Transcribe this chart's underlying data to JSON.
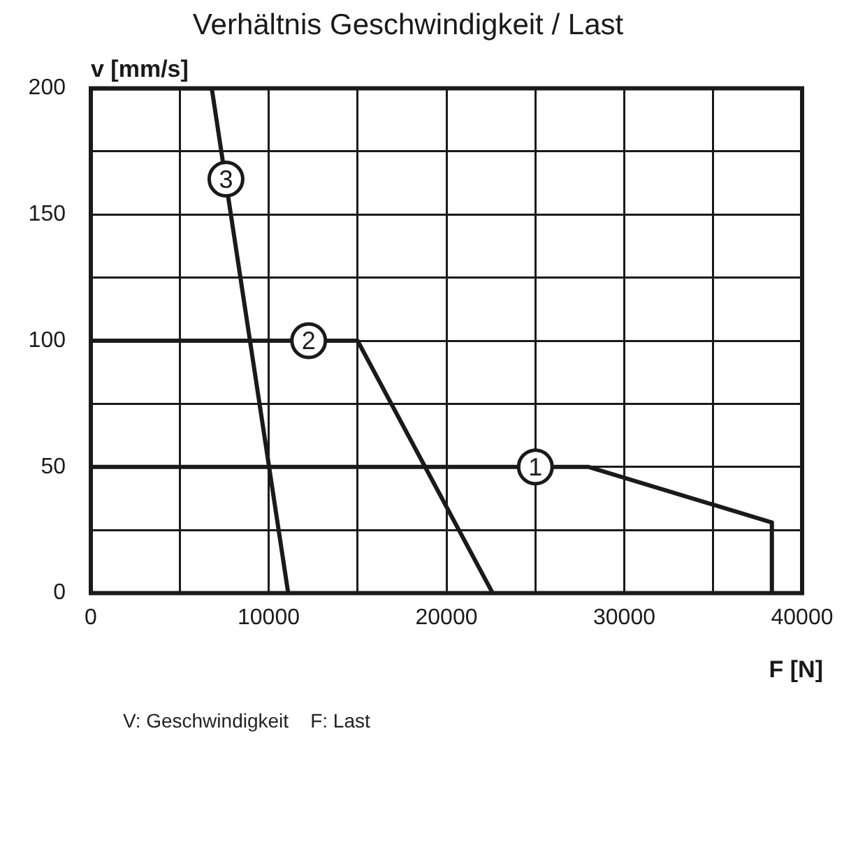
{
  "chart_data": {
    "type": "line",
    "title": "Verhältnis Geschwindigkeit / Last",
    "xlabel": "F [N]",
    "ylabel": "v [mm/s]",
    "series": [
      {
        "color": "#1a1a1a",
        "x": [
          0,
          28000,
          38300,
          38300
        ],
        "values": [
          50,
          50,
          28,
          0
        ]
      },
      {
        "color": "#1a1a1a",
        "x": [
          0,
          15000,
          22600
        ],
        "values": [
          100,
          100,
          0
        ]
      },
      {
        "color": "#1a1a1a",
        "x": [
          0,
          6800,
          11100
        ],
        "values": [
          200,
          200,
          0
        ]
      }
    ],
    "xlim": [
      0,
      40000
    ],
    "xticks": [
      0,
      {
        "value": 5000,
        "label": null
      },
      10000,
      {
        "value": 15000,
        "label": null
      },
      20000,
      {
        "value": 25000,
        "label": null
      },
      30000,
      {
        "value": 35000,
        "label": null
      },
      40000
    ],
    "ylim": [
      0,
      200
    ],
    "yticks": [
      0,
      {
        "value": 25,
        "label": null
      },
      50,
      {
        "value": 75,
        "label": null
      },
      100,
      {
        "value": 125,
        "label": null
      },
      150,
      {
        "value": 175,
        "label": null
      },
      200
    ],
    "grid": true,
    "marker": "none",
    "line_style": "solid",
    "annotations": [
      {
        "text": "1",
        "x": 25000,
        "y": 50
      },
      {
        "text": "2",
        "x": 12250,
        "y": 100
      },
      {
        "text": "3",
        "x": 7600,
        "y": 164
      },
      "V: Geschwindigkeit    F: Last"
    ]
  }
}
